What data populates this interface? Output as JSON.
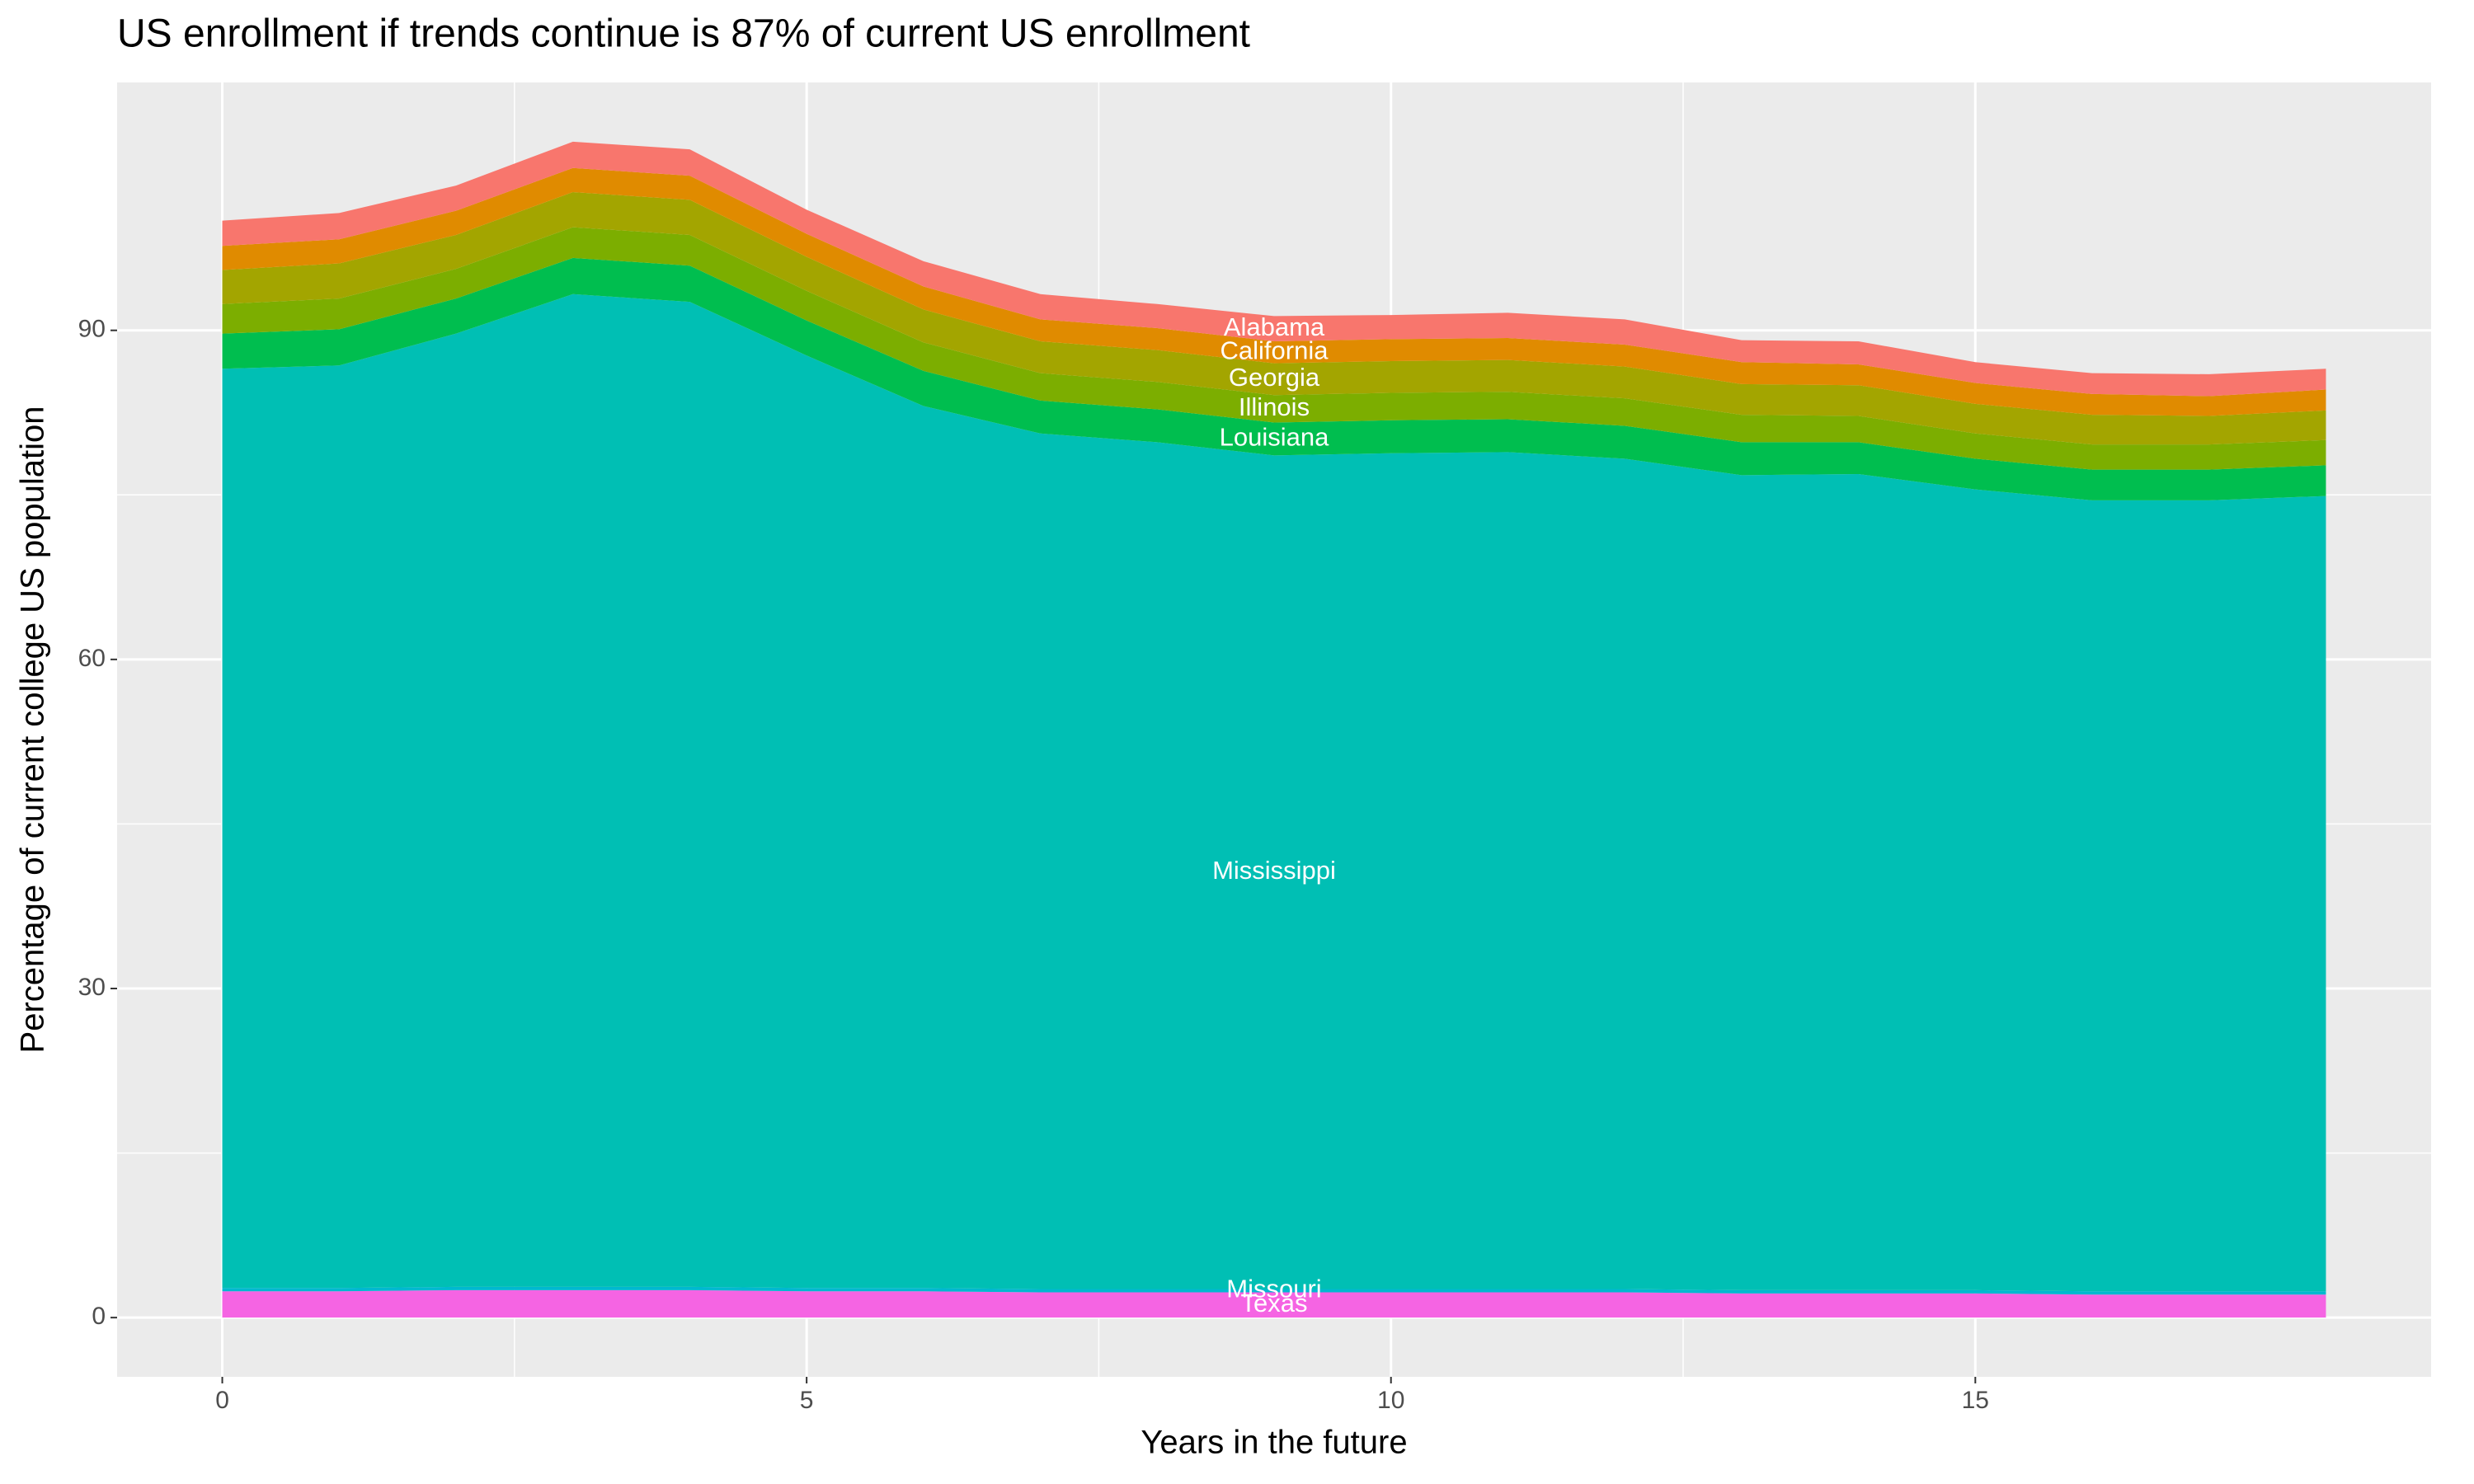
{
  "chart_data": {
    "type": "stacked_area",
    "title": "US enrollment if trends continue is 87% of current US enrollment",
    "x_label": "Years in the future",
    "y_label": "Percentage of current college US population",
    "x": [
      0,
      1,
      2,
      3,
      4,
      5,
      6,
      7,
      8,
      9,
      10,
      11,
      12,
      13,
      14,
      15,
      16,
      17,
      18
    ],
    "series": [
      {
        "name": "Alabama",
        "color": "#F8766D",
        "values": [
          2.3,
          2.4,
          2.3,
          2.4,
          2.4,
          2.2,
          2.3,
          2.3,
          2.2,
          2.3,
          2.2,
          2.3,
          2.3,
          2.0,
          2.1,
          1.9,
          1.9,
          2.0,
          1.9
        ]
      },
      {
        "name": "California",
        "color": "#E08B00",
        "values": [
          2.2,
          2.2,
          2.2,
          2.2,
          2.2,
          2.1,
          2.1,
          2.0,
          2.0,
          2.0,
          2.0,
          2.0,
          2.0,
          2.0,
          1.9,
          1.9,
          1.9,
          1.8,
          1.9
        ]
      },
      {
        "name": "Georgia",
        "color": "#A3A500",
        "values": [
          3.1,
          3.2,
          3.1,
          3.2,
          3.2,
          3.1,
          3.0,
          2.9,
          2.9,
          2.9,
          2.9,
          2.9,
          2.9,
          2.8,
          2.8,
          2.7,
          2.7,
          2.6,
          2.7
        ]
      },
      {
        "name": "Illinois",
        "color": "#7CAE00",
        "values": [
          2.7,
          2.8,
          2.7,
          2.8,
          2.8,
          2.7,
          2.6,
          2.5,
          2.5,
          2.5,
          2.5,
          2.5,
          2.5,
          2.5,
          2.4,
          2.3,
          2.3,
          2.3,
          2.3
        ]
      },
      {
        "name": "Louisiana",
        "color": "#00BE4F",
        "values": [
          3.2,
          3.3,
          3.2,
          3.3,
          3.3,
          3.2,
          3.2,
          3.0,
          3.0,
          3.0,
          3.0,
          3.0,
          3.0,
          3.0,
          2.9,
          2.8,
          2.8,
          2.8,
          2.8
        ]
      },
      {
        "name": "Mississippi",
        "color": "#00BFB4",
        "values": [
          83.8,
          84.1,
          86.9,
          90.5,
          89.8,
          85.0,
          80.4,
          78.0,
          77.2,
          76.0,
          76.2,
          76.3,
          75.7,
          74.3,
          74.4,
          73.0,
          72.1,
          72.1,
          72.5
        ]
      },
      {
        "name": "Missouri",
        "color": "#00B8D0",
        "values": [
          0.3,
          0.3,
          0.3,
          0.3,
          0.3,
          0.3,
          0.3,
          0.3,
          0.3,
          0.3,
          0.3,
          0.3,
          0.3,
          0.3,
          0.3,
          0.3,
          0.3,
          0.3,
          0.3
        ]
      },
      {
        "name": "Texas",
        "color": "#F564E3",
        "values": [
          2.4,
          2.4,
          2.5,
          2.5,
          2.5,
          2.4,
          2.4,
          2.3,
          2.3,
          2.3,
          2.3,
          2.3,
          2.3,
          2.2,
          2.2,
          2.2,
          2.1,
          2.1,
          2.1
        ]
      }
    ],
    "xlim": [
      -0.9,
      18.9
    ],
    "ylim": [
      -5.4,
      112.6
    ],
    "xticks": [
      0,
      5,
      10,
      15
    ],
    "yticks": [
      0,
      30,
      60,
      90
    ],
    "grid": true,
    "label_at_index": 9
  }
}
